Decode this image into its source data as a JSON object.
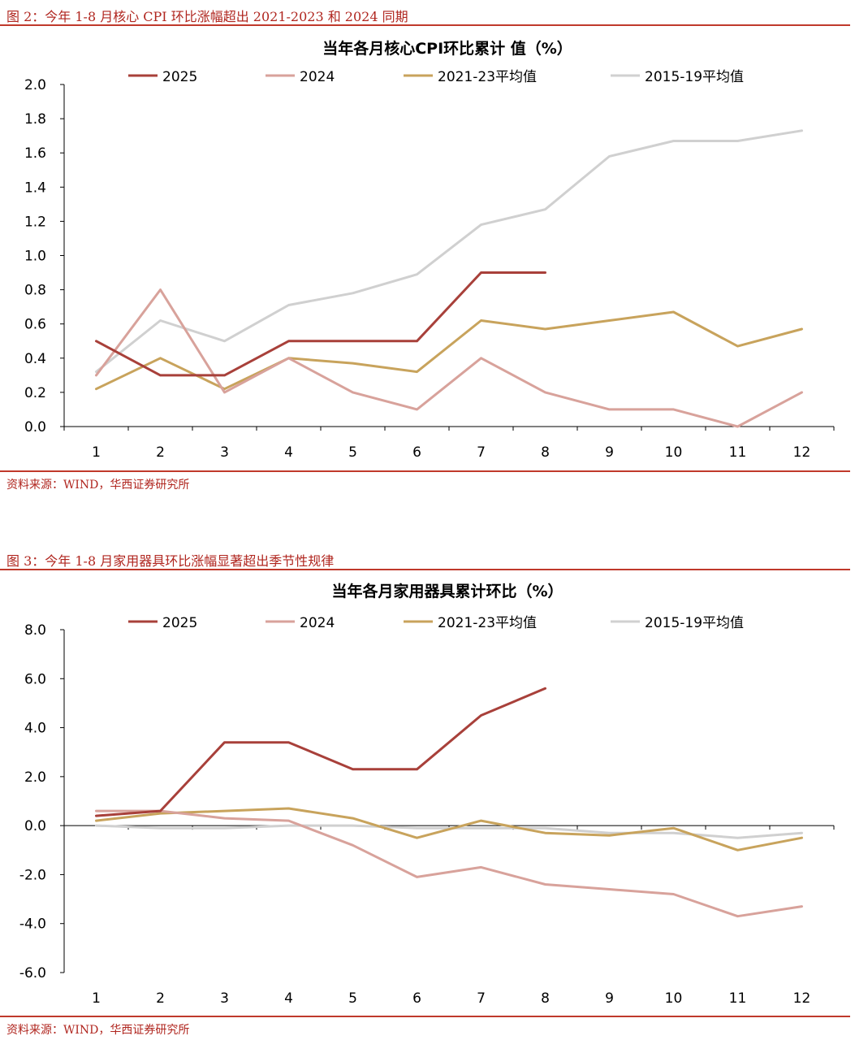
{
  "colors": {
    "s2025": "#a8403a",
    "s2024": "#d8a29b",
    "s2021_23": "#c8a35c",
    "s2015_19": "#d0d0d0",
    "accent": "#b0261f"
  },
  "figures": [
    {
      "title": "图 2：今年 1-8 月核心 CPI 环比涨幅超出 2021-2023 和 2024 同期",
      "source": "资料来源：WIND，华西证券研究所"
    },
    {
      "title": "图 3：今年 1-8 月家用器具环比涨幅显著超出季节性规律",
      "source": "资料来源：WIND，华西证券研究所"
    }
  ],
  "chart_data": [
    {
      "type": "line",
      "title": "当年各月核心CPI环比累计 值（%）",
      "x": [
        1,
        2,
        3,
        4,
        5,
        6,
        7,
        8,
        9,
        10,
        11,
        12
      ],
      "ylim": [
        0,
        2.0
      ],
      "yticks": [
        "0.0",
        "0.2",
        "0.4",
        "0.6",
        "0.8",
        "1.0",
        "1.2",
        "1.4",
        "1.6",
        "1.8",
        "2.0"
      ],
      "grid": false,
      "legend": "top",
      "series": [
        {
          "name": "2025",
          "color_key": "s2025",
          "values": [
            0.5,
            0.3,
            0.3,
            0.5,
            0.5,
            0.5,
            0.9,
            0.9,
            null,
            null,
            null,
            null
          ]
        },
        {
          "name": "2024",
          "color_key": "s2024",
          "values": [
            0.3,
            0.8,
            0.2,
            0.4,
            0.2,
            0.1,
            0.4,
            0.2,
            0.1,
            0.1,
            0.0,
            0.2
          ]
        },
        {
          "name": "2021-23平均值",
          "color_key": "s2021_23",
          "values": [
            0.22,
            0.4,
            0.22,
            0.4,
            0.37,
            0.32,
            0.62,
            0.57,
            0.62,
            0.67,
            0.47,
            0.57
          ]
        },
        {
          "name": "2015-19平均值",
          "color_key": "s2015_19",
          "values": [
            0.32,
            0.62,
            0.5,
            0.71,
            0.78,
            0.89,
            1.18,
            1.27,
            1.58,
            1.67,
            1.67,
            1.73
          ]
        }
      ]
    },
    {
      "type": "line",
      "title": "当年各月家用器具累计环比（%）",
      "x": [
        1,
        2,
        3,
        4,
        5,
        6,
        7,
        8,
        9,
        10,
        11,
        12
      ],
      "ylim": [
        -6.0,
        8.0
      ],
      "yticks": [
        "-6.0",
        "-4.0",
        "-2.0",
        "0.0",
        "2.0",
        "4.0",
        "6.0",
        "8.0"
      ],
      "grid": false,
      "legend": "top",
      "series": [
        {
          "name": "2025",
          "color_key": "s2025",
          "values": [
            0.4,
            0.6,
            3.4,
            3.4,
            2.3,
            2.3,
            4.5,
            5.6,
            null,
            null,
            null,
            null
          ]
        },
        {
          "name": "2024",
          "color_key": "s2024",
          "values": [
            0.6,
            0.6,
            0.3,
            0.2,
            -0.8,
            -2.1,
            -1.7,
            -2.4,
            -2.6,
            -2.8,
            -3.7,
            -3.3
          ]
        },
        {
          "name": "2021-23平均值",
          "color_key": "s2021_23",
          "values": [
            0.2,
            0.5,
            0.6,
            0.7,
            0.3,
            -0.5,
            0.2,
            -0.3,
            -0.4,
            -0.1,
            -1.0,
            -0.5
          ]
        },
        {
          "name": "2015-19平均值",
          "color_key": "s2015_19",
          "values": [
            0.0,
            -0.1,
            -0.1,
            0.0,
            0.0,
            -0.1,
            -0.1,
            -0.1,
            -0.3,
            -0.3,
            -0.5,
            -0.3
          ]
        }
      ]
    }
  ]
}
